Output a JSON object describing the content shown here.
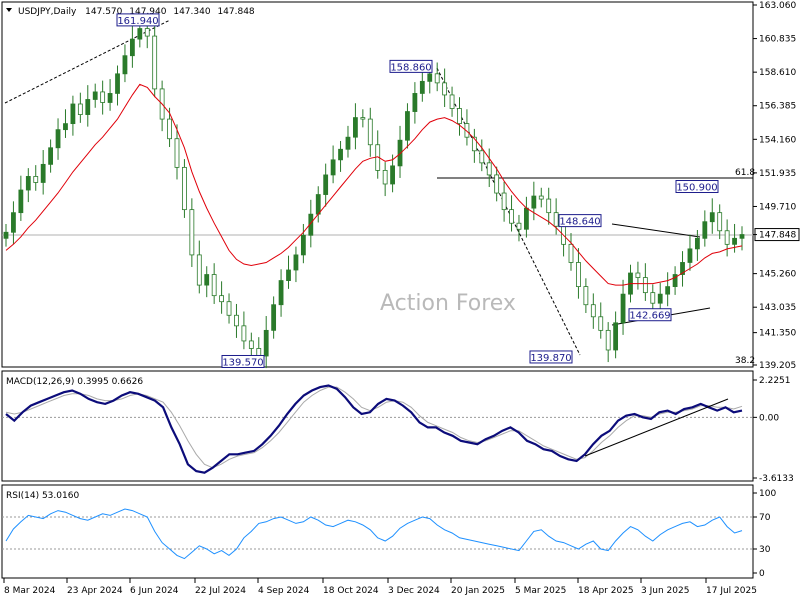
{
  "chart_data": [
    {
      "type": "candlestick",
      "header": {
        "symbol": "USDJPY",
        "timeframe": "Daily",
        "ohlc": [
          "147.570",
          "147.940",
          "147.340",
          "147.848"
        ]
      },
      "watermark": "Action Forex",
      "y_ticks": [
        "163.060",
        "160.835",
        "158.610",
        "156.385",
        "154.160",
        "151.935",
        "149.710",
        "147.848",
        "145.260",
        "143.035",
        "141.350",
        "139.205"
      ],
      "x_ticks": [
        "8 Mar 2024",
        "23 Apr 2024",
        "6 Jun 2024",
        "22 Jul 2024",
        "4 Sep 2024",
        "18 Oct 2024",
        "3 Dec 2024",
        "20 Jan 2025",
        "5 Mar 2025",
        "18 Apr 2025",
        "3 Jun 2025",
        "17 Jul 2025"
      ],
      "ylim": [
        139.205,
        163.06
      ],
      "last_price": 147.848,
      "fib_labels": [
        "61.8",
        "38.2"
      ],
      "swing_labels": [
        {
          "text": "161.940",
          "value": 161.94
        },
        {
          "text": "158.860",
          "value": 158.86
        },
        {
          "text": "148.640",
          "value": 148.64
        },
        {
          "text": "150.900",
          "value": 150.9
        },
        {
          "text": "142.669",
          "value": 142.669
        },
        {
          "text": "139.870",
          "value": 139.87
        },
        {
          "text": "139.570",
          "value": 139.57
        }
      ],
      "close_series": [
        148.0,
        149.3,
        150.8,
        151.7,
        151.3,
        152.5,
        153.6,
        154.8,
        155.2,
        156.5,
        155.8,
        156.8,
        157.3,
        156.6,
        157.2,
        158.5,
        159.7,
        160.8,
        161.5,
        161.0,
        157.5,
        155.5,
        154.2,
        152.3,
        149.5,
        146.5,
        144.5,
        145.2,
        143.8,
        143.4,
        142.5,
        141.8,
        140.8,
        140.3,
        139.8,
        141.5,
        143.2,
        144.8,
        145.5,
        146.5,
        147.8,
        149.2,
        150.5,
        151.8,
        152.8,
        153.5,
        154.3,
        155.6,
        155.5,
        153.8,
        152.1,
        151.2,
        152.4,
        154.1,
        156.0,
        157.2,
        158.0,
        158.5,
        157.9,
        157.1,
        156.2,
        155.2,
        154.3,
        153.4,
        152.6,
        151.8,
        150.6,
        149.5,
        148.6,
        148.2,
        149.6,
        150.4,
        150.2,
        149.3,
        148.4,
        147.2,
        146.0,
        144.4,
        143.2,
        142.4,
        141.5,
        140.2,
        142.0,
        143.9,
        145.3,
        145.0,
        144.0,
        143.3,
        143.9,
        144.4,
        145.2,
        146.0,
        146.9,
        147.6,
        148.7,
        149.3,
        148.1,
        147.2,
        147.6,
        147.85
      ],
      "ema_series": [
        146.8,
        147.2,
        147.7,
        148.3,
        148.8,
        149.4,
        150.0,
        150.6,
        151.3,
        152.0,
        152.6,
        153.2,
        153.8,
        154.3,
        154.9,
        155.5,
        156.3,
        157.1,
        157.8,
        157.6,
        157.0,
        156.5,
        155.9,
        154.8,
        153.6,
        152.0,
        150.7,
        149.6,
        148.6,
        147.7,
        146.8,
        146.2,
        145.9,
        145.8,
        145.9,
        146.0,
        146.3,
        146.6,
        147.0,
        147.5,
        148.0,
        148.6,
        149.2,
        149.8,
        150.4,
        151.0,
        151.6,
        152.2,
        152.7,
        152.9,
        153.0,
        152.7,
        152.8,
        153.2,
        153.7,
        154.2,
        154.8,
        155.3,
        155.5,
        155.6,
        155.4,
        155.1,
        154.7,
        154.2,
        153.6,
        152.9,
        152.2,
        151.4,
        150.7,
        150.1,
        149.6,
        149.3,
        149.0,
        148.7,
        148.3,
        147.8,
        147.3,
        146.7,
        146.1,
        145.6,
        145.1,
        144.6,
        144.5,
        144.5,
        144.6,
        144.6,
        144.6,
        144.6,
        144.7,
        144.8,
        145.0,
        145.3,
        145.6,
        145.9,
        146.3,
        146.6,
        146.7,
        146.9,
        147.0,
        147.1
      ]
    },
    {
      "type": "line",
      "title": "MACD(12,26,9) 0.3995 0.6626",
      "y_ticks": [
        "2.2251",
        "0.00",
        "-3.6133"
      ],
      "ylim": [
        -3.6133,
        2.2251
      ],
      "macd_series": [
        0.2,
        -0.2,
        0.3,
        0.7,
        0.9,
        1.1,
        1.3,
        1.5,
        1.6,
        1.4,
        1.1,
        0.9,
        0.8,
        1.0,
        1.3,
        1.5,
        1.4,
        1.2,
        1.0,
        0.6,
        -0.6,
        -1.6,
        -2.8,
        -3.2,
        -3.3,
        -3.0,
        -2.6,
        -2.2,
        -2.2,
        -2.1,
        -2.0,
        -1.6,
        -1.1,
        -0.5,
        0.2,
        0.8,
        1.3,
        1.6,
        1.8,
        1.9,
        1.7,
        1.2,
        0.6,
        0.2,
        0.3,
        0.8,
        1.1,
        1.0,
        0.7,
        0.3,
        -0.3,
        -0.6,
        -0.6,
        -0.9,
        -1.1,
        -1.4,
        -1.5,
        -1.6,
        -1.3,
        -1.1,
        -0.8,
        -0.6,
        -0.9,
        -1.4,
        -1.6,
        -1.9,
        -2.0,
        -2.3,
        -2.5,
        -2.6,
        -2.2,
        -1.6,
        -1.1,
        -0.8,
        -0.2,
        0.1,
        0.2,
        0.0,
        -0.1,
        0.3,
        0.4,
        0.2,
        0.5,
        0.6,
        0.8,
        0.6,
        0.4,
        0.6,
        0.3,
        0.4
      ],
      "signal_series": [
        0.3,
        0.2,
        0.3,
        0.5,
        0.7,
        0.9,
        1.1,
        1.3,
        1.4,
        1.4,
        1.3,
        1.1,
        1.0,
        1.0,
        1.1,
        1.3,
        1.4,
        1.3,
        1.1,
        0.9,
        0.3,
        -0.5,
        -1.4,
        -2.2,
        -2.8,
        -3.0,
        -2.8,
        -2.5,
        -2.3,
        -2.2,
        -2.1,
        -1.8,
        -1.4,
        -0.9,
        -0.3,
        0.3,
        0.9,
        1.3,
        1.6,
        1.8,
        1.8,
        1.5,
        1.1,
        0.6,
        0.4,
        0.6,
        0.9,
        1.0,
        0.9,
        0.6,
        0.1,
        -0.3,
        -0.5,
        -0.7,
        -0.9,
        -1.2,
        -1.4,
        -1.5,
        -1.4,
        -1.2,
        -1.0,
        -0.8,
        -0.8,
        -1.1,
        -1.4,
        -1.7,
        -1.9,
        -2.1,
        -2.3,
        -2.5,
        -2.4,
        -2.0,
        -1.5,
        -1.1,
        -0.6,
        -0.2,
        0.1,
        0.1,
        0.0,
        0.2,
        0.3,
        0.3,
        0.4,
        0.5,
        0.7,
        0.7,
        0.6,
        0.6,
        0.5,
        0.66
      ]
    },
    {
      "type": "line",
      "title": "RSI(14) 53.0160",
      "y_ticks": [
        "100",
        "70",
        "30",
        "0"
      ],
      "ylim": [
        0,
        100
      ],
      "levels": [
        70,
        30
      ],
      "rsi_series": [
        40,
        55,
        64,
        72,
        70,
        68,
        74,
        78,
        76,
        72,
        68,
        66,
        70,
        74,
        72,
        76,
        80,
        78,
        74,
        70,
        52,
        38,
        30,
        22,
        18,
        26,
        34,
        30,
        24,
        28,
        22,
        30,
        44,
        52,
        62,
        64,
        68,
        70,
        66,
        62,
        64,
        70,
        66,
        60,
        58,
        62,
        66,
        64,
        60,
        54,
        44,
        40,
        46,
        56,
        62,
        66,
        70,
        68,
        60,
        54,
        50,
        44,
        42,
        40,
        38,
        36,
        34,
        32,
        30,
        28,
        40,
        52,
        54,
        46,
        40,
        38,
        34,
        30,
        36,
        40,
        30,
        28,
        40,
        50,
        58,
        54,
        46,
        40,
        48,
        54,
        58,
        62,
        64,
        58,
        60,
        66,
        70,
        58,
        50,
        53
      ]
    }
  ]
}
